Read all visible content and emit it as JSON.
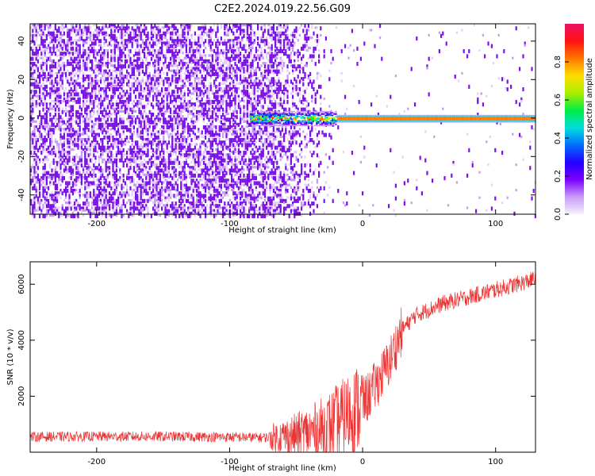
{
  "title": "C2E2.2024.019.22.56.G09",
  "colors": {
    "snr_line": "#ee3333",
    "spectro_bg_low": "#f3e8ff",
    "spectro_noise": "#7a12e6",
    "colormap": [
      "#f7f0ff",
      "#c79cf7",
      "#7a00ff",
      "#2200ff",
      "#0070ff",
      "#00dddd",
      "#00ee44",
      "#aaee00",
      "#ffdd00",
      "#ff7700",
      "#ff1111",
      "#ee1166"
    ]
  },
  "chart_data": [
    {
      "type": "heatmap",
      "name": "spectrogram",
      "xlabel": "Height of straight line (km)",
      "ylabel": "Frequency (Hz)",
      "xlim": [
        -250,
        130
      ],
      "ylim": [
        -50,
        49
      ],
      "xticks": [
        -200,
        -100,
        0,
        100
      ],
      "yticks": [
        -40,
        -20,
        0,
        20,
        40
      ],
      "colorbar": {
        "label": "Normalized spectral amplitude",
        "range": [
          0,
          1
        ],
        "ticks": [
          "0.0",
          "0.2",
          "0.4",
          "0.6",
          "0.8"
        ]
      },
      "features": {
        "noise_region_x": [
          -250,
          -70
        ],
        "sparse_noise_x": [
          -70,
          -25
        ],
        "signal_line_freq_hz": 0,
        "signal_onset_x": -85,
        "signal_line_clear_from_x": -20
      },
      "grid": false
    },
    {
      "type": "line",
      "name": "snr",
      "xlabel": "Height of straight line (km)",
      "ylabel": "SNR (10 * v/v)",
      "xlim": [
        -250,
        130
      ],
      "ylim": [
        0,
        6800
      ],
      "xticks": [
        -200,
        -100,
        0,
        100
      ],
      "yticks": [
        2000,
        4000,
        6000
      ],
      "series": [
        {
          "x": [
            -250,
            -200,
            -150,
            -100,
            -75,
            -50,
            -30,
            -15,
            0,
            10,
            20,
            30,
            40,
            60,
            80,
            100,
            120,
            130
          ],
          "y": [
            550,
            560,
            560,
            540,
            520,
            600,
            800,
            1200,
            1700,
            2400,
            3200,
            4400,
            4900,
            5300,
            5550,
            5800,
            6050,
            6200
          ]
        }
      ],
      "grid": false
    }
  ]
}
